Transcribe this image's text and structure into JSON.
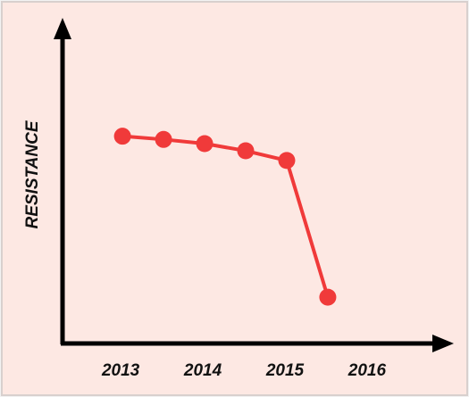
{
  "chart_data": {
    "type": "line",
    "ylabel": "RESISTANCE",
    "x": [
      2013,
      2013.5,
      2014,
      2014.5,
      2015,
      2015.5
    ],
    "values": [
      64,
      63,
      61.7,
      59.5,
      56.5,
      14.3
    ],
    "color": "#f03a3a",
    "xlim": [
      2012.27,
      2016.73
    ],
    "xticks": [
      2013,
      2014,
      2015,
      2016
    ],
    "ylim": [
      0,
      100
    ]
  }
}
